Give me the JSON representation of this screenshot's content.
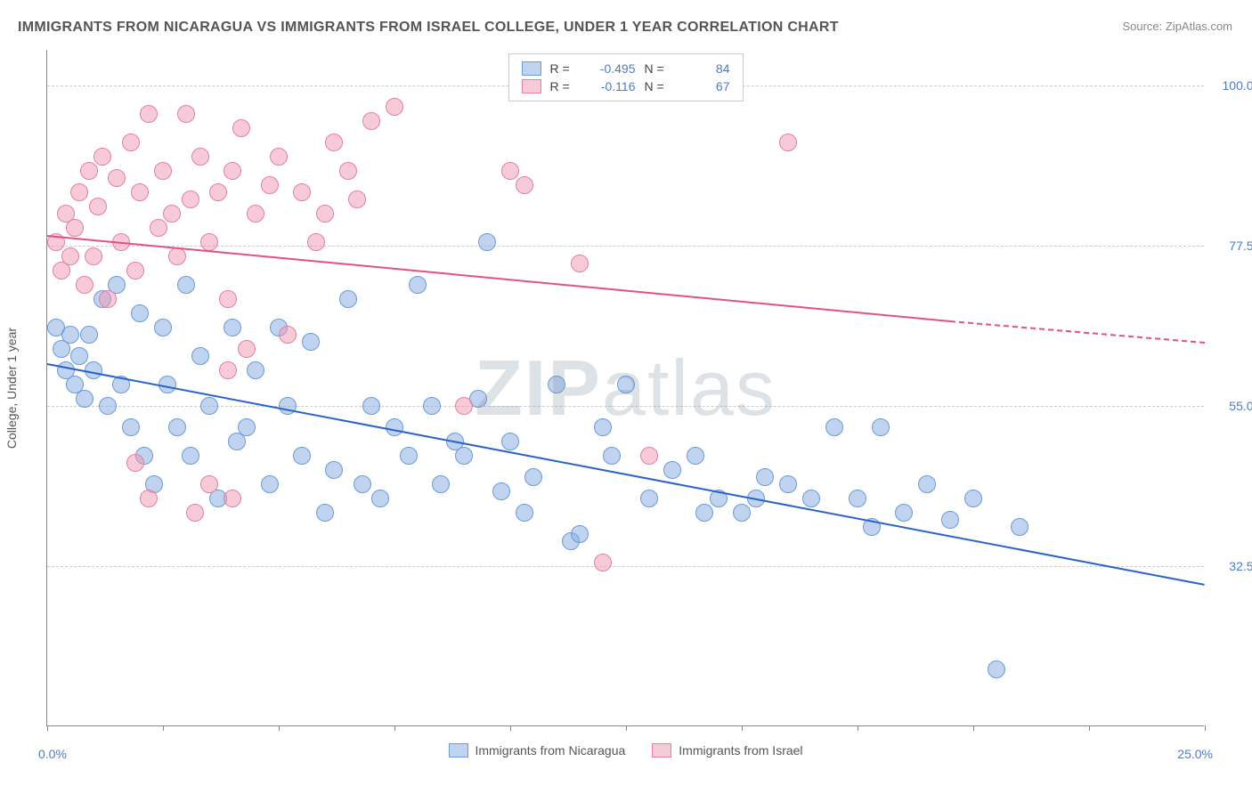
{
  "title": "IMMIGRANTS FROM NICARAGUA VS IMMIGRANTS FROM ISRAEL COLLEGE, UNDER 1 YEAR CORRELATION CHART",
  "source": "Source: ZipAtlas.com",
  "watermark_bold": "ZIP",
  "watermark_light": "atlas",
  "chart": {
    "type": "scatter",
    "ylabel": "College, Under 1 year",
    "background_color": "#ffffff",
    "grid_color": "#cccccc",
    "axis_color": "#888888",
    "label_color": "#555555",
    "tick_color": "#4a7bd0",
    "xlim": [
      0,
      25
    ],
    "ylim": [
      10,
      105
    ],
    "xtick_labels": {
      "min": "0.0%",
      "max": "25.0%"
    },
    "xtick_positions": [
      0,
      2.5,
      5,
      7.5,
      10,
      12.5,
      15,
      17.5,
      20,
      22.5,
      25
    ],
    "yticks": [
      {
        "v": 100.0,
        "label": "100.0%"
      },
      {
        "v": 77.5,
        "label": "77.5%"
      },
      {
        "v": 55.0,
        "label": "55.0%"
      },
      {
        "v": 32.5,
        "label": "32.5%"
      }
    ],
    "series": [
      {
        "name": "Immigrants from Nicaragua",
        "point_fill": "rgba(130,170,225,0.5)",
        "point_stroke": "#6a9ad8",
        "trend_color": "#2962c9",
        "point_radius": 10,
        "R": "-0.495",
        "N": "84",
        "trend": {
          "x1": 0,
          "y1": 61,
          "x2": 25,
          "y2": 30
        },
        "points": [
          [
            0.2,
            66
          ],
          [
            0.3,
            63
          ],
          [
            0.4,
            60
          ],
          [
            0.5,
            65
          ],
          [
            0.6,
            58
          ],
          [
            0.7,
            62
          ],
          [
            0.8,
            56
          ],
          [
            0.9,
            65
          ],
          [
            1.0,
            60
          ],
          [
            1.2,
            70
          ],
          [
            1.3,
            55
          ],
          [
            1.5,
            72
          ],
          [
            1.6,
            58
          ],
          [
            1.8,
            52
          ],
          [
            2.0,
            68
          ],
          [
            2.1,
            48
          ],
          [
            2.3,
            44
          ],
          [
            2.5,
            66
          ],
          [
            2.6,
            58
          ],
          [
            2.8,
            52
          ],
          [
            3.0,
            72
          ],
          [
            3.1,
            48
          ],
          [
            3.3,
            62
          ],
          [
            3.5,
            55
          ],
          [
            3.7,
            42
          ],
          [
            4.0,
            66
          ],
          [
            4.1,
            50
          ],
          [
            4.3,
            52
          ],
          [
            4.5,
            60
          ],
          [
            4.8,
            44
          ],
          [
            5.0,
            66
          ],
          [
            5.2,
            55
          ],
          [
            5.5,
            48
          ],
          [
            5.7,
            64
          ],
          [
            6.0,
            40
          ],
          [
            6.2,
            46
          ],
          [
            6.5,
            70
          ],
          [
            6.8,
            44
          ],
          [
            7.0,
            55
          ],
          [
            7.2,
            42
          ],
          [
            7.5,
            52
          ],
          [
            7.8,
            48
          ],
          [
            8.0,
            72
          ],
          [
            8.3,
            55
          ],
          [
            8.5,
            44
          ],
          [
            8.8,
            50
          ],
          [
            9.0,
            48
          ],
          [
            9.3,
            56
          ],
          [
            9.5,
            78
          ],
          [
            9.8,
            43
          ],
          [
            10.0,
            50
          ],
          [
            10.3,
            40
          ],
          [
            10.5,
            45
          ],
          [
            11.0,
            58
          ],
          [
            11.3,
            36
          ],
          [
            11.5,
            37
          ],
          [
            12.0,
            52
          ],
          [
            12.2,
            48
          ],
          [
            12.5,
            58
          ],
          [
            13.0,
            42
          ],
          [
            13.5,
            46
          ],
          [
            14.0,
            48
          ],
          [
            14.2,
            40
          ],
          [
            14.5,
            42
          ],
          [
            15.0,
            40
          ],
          [
            15.3,
            42
          ],
          [
            15.5,
            45
          ],
          [
            16.0,
            44
          ],
          [
            16.5,
            42
          ],
          [
            17.0,
            52
          ],
          [
            17.5,
            42
          ],
          [
            17.8,
            38
          ],
          [
            18.0,
            52
          ],
          [
            18.5,
            40
          ],
          [
            19.0,
            44
          ],
          [
            19.5,
            39
          ],
          [
            20.0,
            42
          ],
          [
            20.5,
            18
          ],
          [
            21.0,
            38
          ]
        ]
      },
      {
        "name": "Immigrants from Israel",
        "point_fill": "rgba(240,150,175,0.5)",
        "point_stroke": "#e381a0",
        "trend_color": "#e35183",
        "point_radius": 10,
        "R": "-0.116",
        "N": "67",
        "trend": {
          "x1": 0,
          "y1": 79,
          "x2": 19.5,
          "y2": 67
        },
        "trend_dash": {
          "x1": 19.5,
          "y1": 67,
          "x2": 25,
          "y2": 64
        },
        "points": [
          [
            0.2,
            78
          ],
          [
            0.3,
            74
          ],
          [
            0.4,
            82
          ],
          [
            0.5,
            76
          ],
          [
            0.6,
            80
          ],
          [
            0.7,
            85
          ],
          [
            0.8,
            72
          ],
          [
            0.9,
            88
          ],
          [
            1.0,
            76
          ],
          [
            1.1,
            83
          ],
          [
            1.2,
            90
          ],
          [
            1.3,
            70
          ],
          [
            1.5,
            87
          ],
          [
            1.6,
            78
          ],
          [
            1.8,
            92
          ],
          [
            1.9,
            74
          ],
          [
            2.0,
            85
          ],
          [
            2.2,
            96
          ],
          [
            2.4,
            80
          ],
          [
            2.5,
            88
          ],
          [
            2.7,
            82
          ],
          [
            2.8,
            76
          ],
          [
            3.0,
            96
          ],
          [
            3.1,
            84
          ],
          [
            3.3,
            90
          ],
          [
            3.5,
            78
          ],
          [
            3.7,
            85
          ],
          [
            3.9,
            70
          ],
          [
            4.0,
            88
          ],
          [
            4.2,
            94
          ],
          [
            4.5,
            82
          ],
          [
            4.8,
            86
          ],
          [
            5.0,
            90
          ],
          [
            5.2,
            65
          ],
          [
            5.5,
            85
          ],
          [
            5.8,
            78
          ],
          [
            6.0,
            82
          ],
          [
            6.2,
            92
          ],
          [
            6.5,
            88
          ],
          [
            6.7,
            84
          ],
          [
            7.0,
            95
          ],
          [
            7.5,
            97
          ],
          [
            1.9,
            47
          ],
          [
            2.2,
            42
          ],
          [
            3.2,
            40
          ],
          [
            3.5,
            44
          ],
          [
            3.9,
            60
          ],
          [
            4.0,
            42
          ],
          [
            4.3,
            63
          ],
          [
            9.0,
            55
          ],
          [
            10.0,
            88
          ],
          [
            10.3,
            86
          ],
          [
            11.5,
            75
          ],
          [
            12.0,
            33
          ],
          [
            13.0,
            48
          ],
          [
            16.0,
            92
          ]
        ]
      }
    ],
    "legend_top": {
      "r_label": "R =",
      "n_label": "N ="
    },
    "legend_bottom_labels": [
      "Immigrants from Nicaragua",
      "Immigrants from Israel"
    ]
  }
}
